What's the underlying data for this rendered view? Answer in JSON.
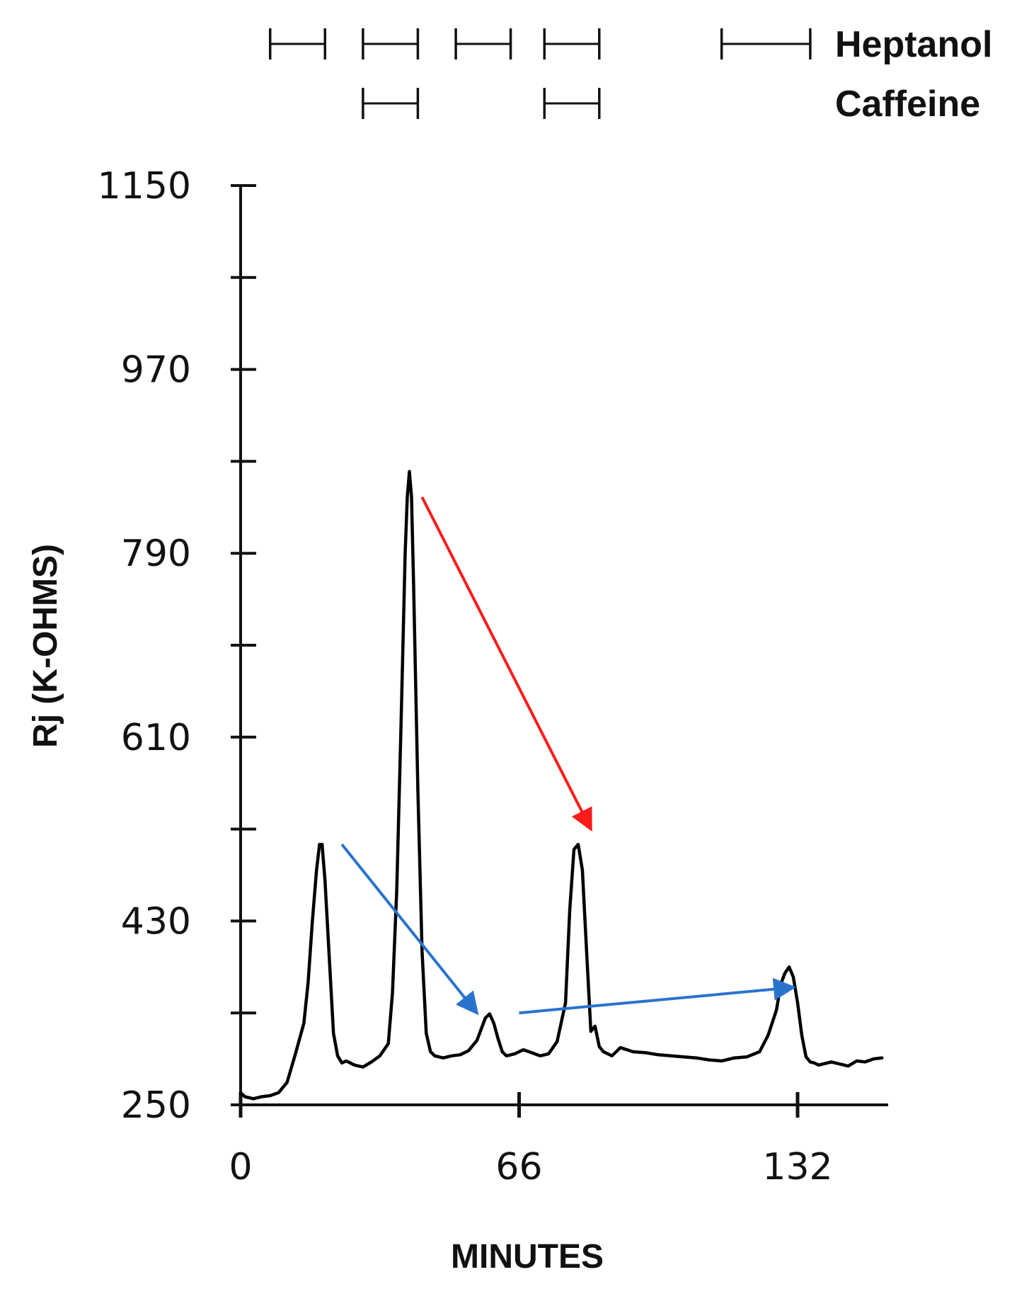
{
  "chart_data": {
    "type": "line",
    "xlabel": "MINUTES",
    "ylabel": "Rj (K-OHMS)",
    "xlim": [
      0,
      152
    ],
    "ylim": [
      250,
      1150
    ],
    "x_ticks": [
      0,
      66,
      132
    ],
    "x_tick_labels": [
      "0",
      "66",
      "132"
    ],
    "y_ticks": [
      250,
      430,
      610,
      790,
      970,
      1150
    ],
    "y_tick_labels": [
      "250",
      "430",
      "610",
      "790",
      "970",
      "1150"
    ],
    "y_minor_ticks": [
      340,
      520,
      700,
      880,
      1060
    ],
    "grid": false,
    "series": [
      {
        "color": "#000000",
        "x": [
          0,
          1,
          3,
          5,
          7,
          9,
          11,
          13,
          15,
          16,
          17,
          18,
          18.7,
          19.3,
          20,
          21,
          22,
          23,
          24,
          25,
          27,
          29,
          31,
          33,
          35,
          36,
          37,
          38,
          39,
          39.5,
          40,
          40.5,
          41,
          42,
          43,
          44,
          45,
          46,
          48,
          50,
          52,
          54,
          56,
          58,
          59,
          60,
          61,
          62,
          63,
          65,
          67,
          69,
          71,
          73,
          75,
          77,
          78,
          79,
          80,
          81,
          82,
          83,
          84,
          85,
          86,
          87,
          88,
          90,
          93,
          96,
          99,
          102,
          105,
          108,
          111,
          114,
          117,
          120,
          123,
          125,
          127,
          128,
          129,
          130,
          131,
          132,
          133,
          134,
          135,
          136,
          137,
          138,
          140,
          142,
          144,
          146,
          148,
          150,
          152
        ],
        "values": [
          262,
          258,
          256,
          258,
          259,
          262,
          272,
          300,
          330,
          370,
          430,
          480,
          505,
          505,
          470,
          395,
          320,
          298,
          291,
          293,
          289,
          287,
          292,
          298,
          310,
          360,
          460,
          620,
          790,
          845,
          870,
          845,
          760,
          560,
          400,
          320,
          302,
          298,
          296,
          298,
          299,
          303,
          313,
          335,
          339,
          330,
          315,
          302,
          298,
          300,
          304,
          301,
          298,
          300,
          312,
          350,
          440,
          500,
          505,
          480,
          400,
          322,
          327,
          307,
          302,
          300,
          298,
          306,
          302,
          301,
          299,
          298,
          297,
          296,
          294,
          293,
          296,
          297,
          302,
          318,
          343,
          368,
          379,
          385,
          375,
          350,
          318,
          297,
          292,
          291,
          289,
          290,
          292,
          290,
          288,
          293,
          292,
          295,
          296
        ]
      }
    ],
    "legend_rows": [
      {
        "label": "Heptanol",
        "intervals": [
          [
            7,
            20
          ],
          [
            29,
            42
          ],
          [
            51,
            64
          ],
          [
            72,
            85
          ],
          [
            114,
            135
          ]
        ]
      },
      {
        "label": "Caffeine",
        "intervals": [
          [
            29,
            42
          ],
          [
            72,
            85
          ]
        ]
      }
    ],
    "annotations": [
      {
        "type": "arrow",
        "color": "#ff1a1a",
        "from": [
          43,
          845
        ],
        "to": [
          83,
          520
        ]
      },
      {
        "type": "arrow",
        "color": "#2a73cc",
        "from": [
          24,
          505
        ],
        "to": [
          56,
          340
        ]
      },
      {
        "type": "arrow",
        "color": "#2a73cc",
        "from": [
          66,
          340
        ],
        "to": [
          131,
          365
        ]
      }
    ]
  }
}
